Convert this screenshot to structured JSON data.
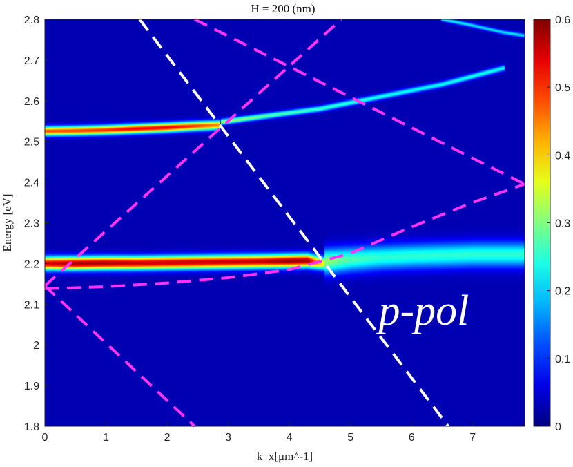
{
  "chart_data": {
    "type": "heatmap",
    "title": "H = 200 (nm)",
    "xlabel": "k_x[μm^-1]",
    "ylabel": "Energy [eV]",
    "xlim": [
      0,
      7.85
    ],
    "ylim": [
      1.8,
      2.8
    ],
    "x_ticks": [
      "0",
      "1",
      "2",
      "3",
      "4",
      "5",
      "6",
      "7"
    ],
    "y_ticks": [
      "1.8",
      "1.9",
      "2",
      "2.1",
      "2.2",
      "2.3",
      "2.4",
      "2.5",
      "2.6",
      "2.7",
      "2.8"
    ],
    "colorbar": {
      "range": [
        0,
        0.6
      ],
      "ticks": [
        "0",
        "0.1",
        "0.2",
        "0.3",
        "0.4",
        "0.5",
        "0.6"
      ],
      "colormap": "jet"
    },
    "annotation": "p-pol",
    "background_value": 0.03,
    "bands": [
      {
        "x": [
          0,
          0.5,
          1,
          1.5,
          2,
          2.5,
          2.85
        ],
        "y": [
          2.525,
          2.526,
          2.528,
          2.531,
          2.534,
          2.538,
          2.54
        ],
        "peak": [
          0.45,
          0.46,
          0.47,
          0.5,
          0.5,
          0.46,
          0.42
        ],
        "width": 0.011
      },
      {
        "x": [
          2.9,
          3.5,
          4,
          4.5,
          5,
          5.5,
          6,
          6.5,
          7,
          7.5
        ],
        "y": [
          2.548,
          2.56,
          2.57,
          2.58,
          2.595,
          2.61,
          2.625,
          2.64,
          2.66,
          2.68
        ],
        "peak": [
          0.3,
          0.26,
          0.24,
          0.23,
          0.22,
          0.21,
          0.2,
          0.2,
          0.21,
          0.2
        ],
        "width": 0.007
      },
      {
        "x": [
          0,
          0.5,
          1,
          1.5,
          2,
          2.5,
          3,
          3.5,
          4,
          4.3,
          4.55
        ],
        "y": [
          2.2,
          2.2,
          2.201,
          2.201,
          2.202,
          2.203,
          2.204,
          2.205,
          2.206,
          2.207,
          2.2
        ],
        "peak": [
          0.52,
          0.55,
          0.55,
          0.53,
          0.53,
          0.53,
          0.53,
          0.53,
          0.56,
          0.55,
          0.35
        ],
        "width": 0.016
      },
      {
        "x": [
          4.6,
          5,
          5.5,
          6,
          6.5,
          7,
          7.5,
          7.85
        ],
        "y": [
          2.205,
          2.21,
          2.215,
          2.218,
          2.22,
          2.222,
          2.222,
          2.222
        ],
        "peak": [
          0.28,
          0.24,
          0.22,
          0.22,
          0.22,
          0.22,
          0.22,
          0.22
        ],
        "width": 0.03
      },
      {
        "x": [
          6.5,
          7,
          7.5,
          7.85
        ],
        "y": [
          2.8,
          2.785,
          2.768,
          2.76
        ],
        "peak": [
          0.2,
          0.18,
          0.18,
          0.18
        ],
        "width": 0.005
      }
    ],
    "dashed_lines": [
      {
        "color": "#ffffff",
        "x": [
          1.55,
          6.6
        ],
        "y": [
          2.8,
          1.8
        ]
      },
      {
        "color": "#ff33ff",
        "x": [
          0,
          4.85
        ],
        "y": [
          2.145,
          2.8
        ]
      },
      {
        "color": "#ff33ff",
        "x": [
          2.45,
          7.85
        ],
        "y": [
          2.8,
          2.395
        ]
      },
      {
        "color": "#ff33ff",
        "x": [
          0,
          2.45
        ],
        "y": [
          2.145,
          1.8
        ]
      },
      {
        "color": "#ff33ff",
        "x": [
          0,
          1,
          2,
          3,
          4,
          5,
          6,
          7,
          7.85
        ],
        "y": [
          2.138,
          2.143,
          2.152,
          2.165,
          2.185,
          2.225,
          2.29,
          2.35,
          2.395
        ]
      }
    ]
  }
}
